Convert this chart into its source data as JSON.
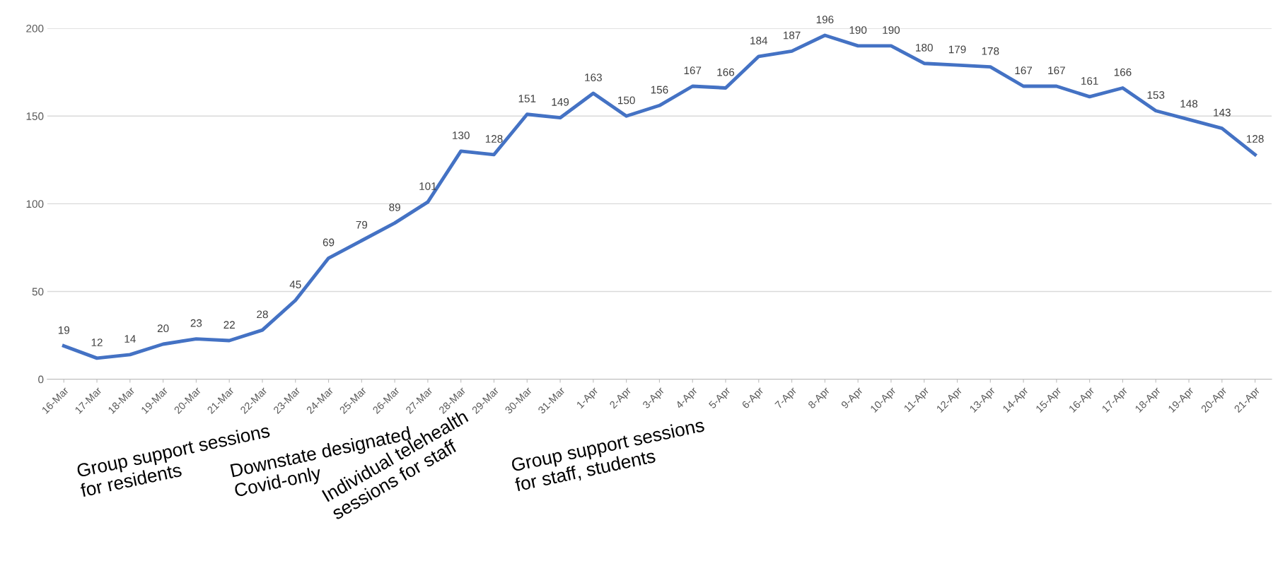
{
  "chart_data": {
    "type": "line",
    "categories": [
      "16-Mar",
      "17-Mar",
      "18-Mar",
      "19-Mar",
      "20-Mar",
      "21-Mar",
      "22-Mar",
      "23-Mar",
      "24-Mar",
      "25-Mar",
      "26-Mar",
      "27-Mar",
      "28-Mar",
      "29-Mar",
      "30-Mar",
      "31-Mar",
      "1-Apr",
      "2-Apr",
      "3-Apr",
      "4-Apr",
      "5-Apr",
      "6-Apr",
      "7-Apr",
      "8-Apr",
      "9-Apr",
      "10-Apr",
      "11-Apr",
      "12-Apr",
      "13-Apr",
      "14-Apr",
      "15-Apr",
      "16-Apr",
      "17-Apr",
      "18-Apr",
      "19-Apr",
      "20-Apr",
      "21-Apr"
    ],
    "series": [
      {
        "color": "#4472c4",
        "values": [
          19,
          12,
          14,
          20,
          23,
          22,
          28,
          45,
          69,
          79,
          89,
          101,
          130,
          128,
          151,
          149,
          163,
          150,
          156,
          167,
          166,
          184,
          187,
          196,
          190,
          190,
          180,
          179,
          178,
          167,
          167,
          161,
          166,
          153,
          148,
          143,
          128
        ]
      }
    ],
    "ylim": [
      0,
      200
    ],
    "yticks": [
      0,
      50,
      100,
      150,
      200
    ],
    "grid": "y",
    "data_labels": true,
    "marker": "none",
    "line_style": "solid",
    "legend": false,
    "annotations": [
      "Group support sessions\nfor residents",
      "Downstate designated\nCovid-only",
      "Individual telehealth\nsessions for staff",
      "Group support sessions\nfor staff, students"
    ]
  }
}
